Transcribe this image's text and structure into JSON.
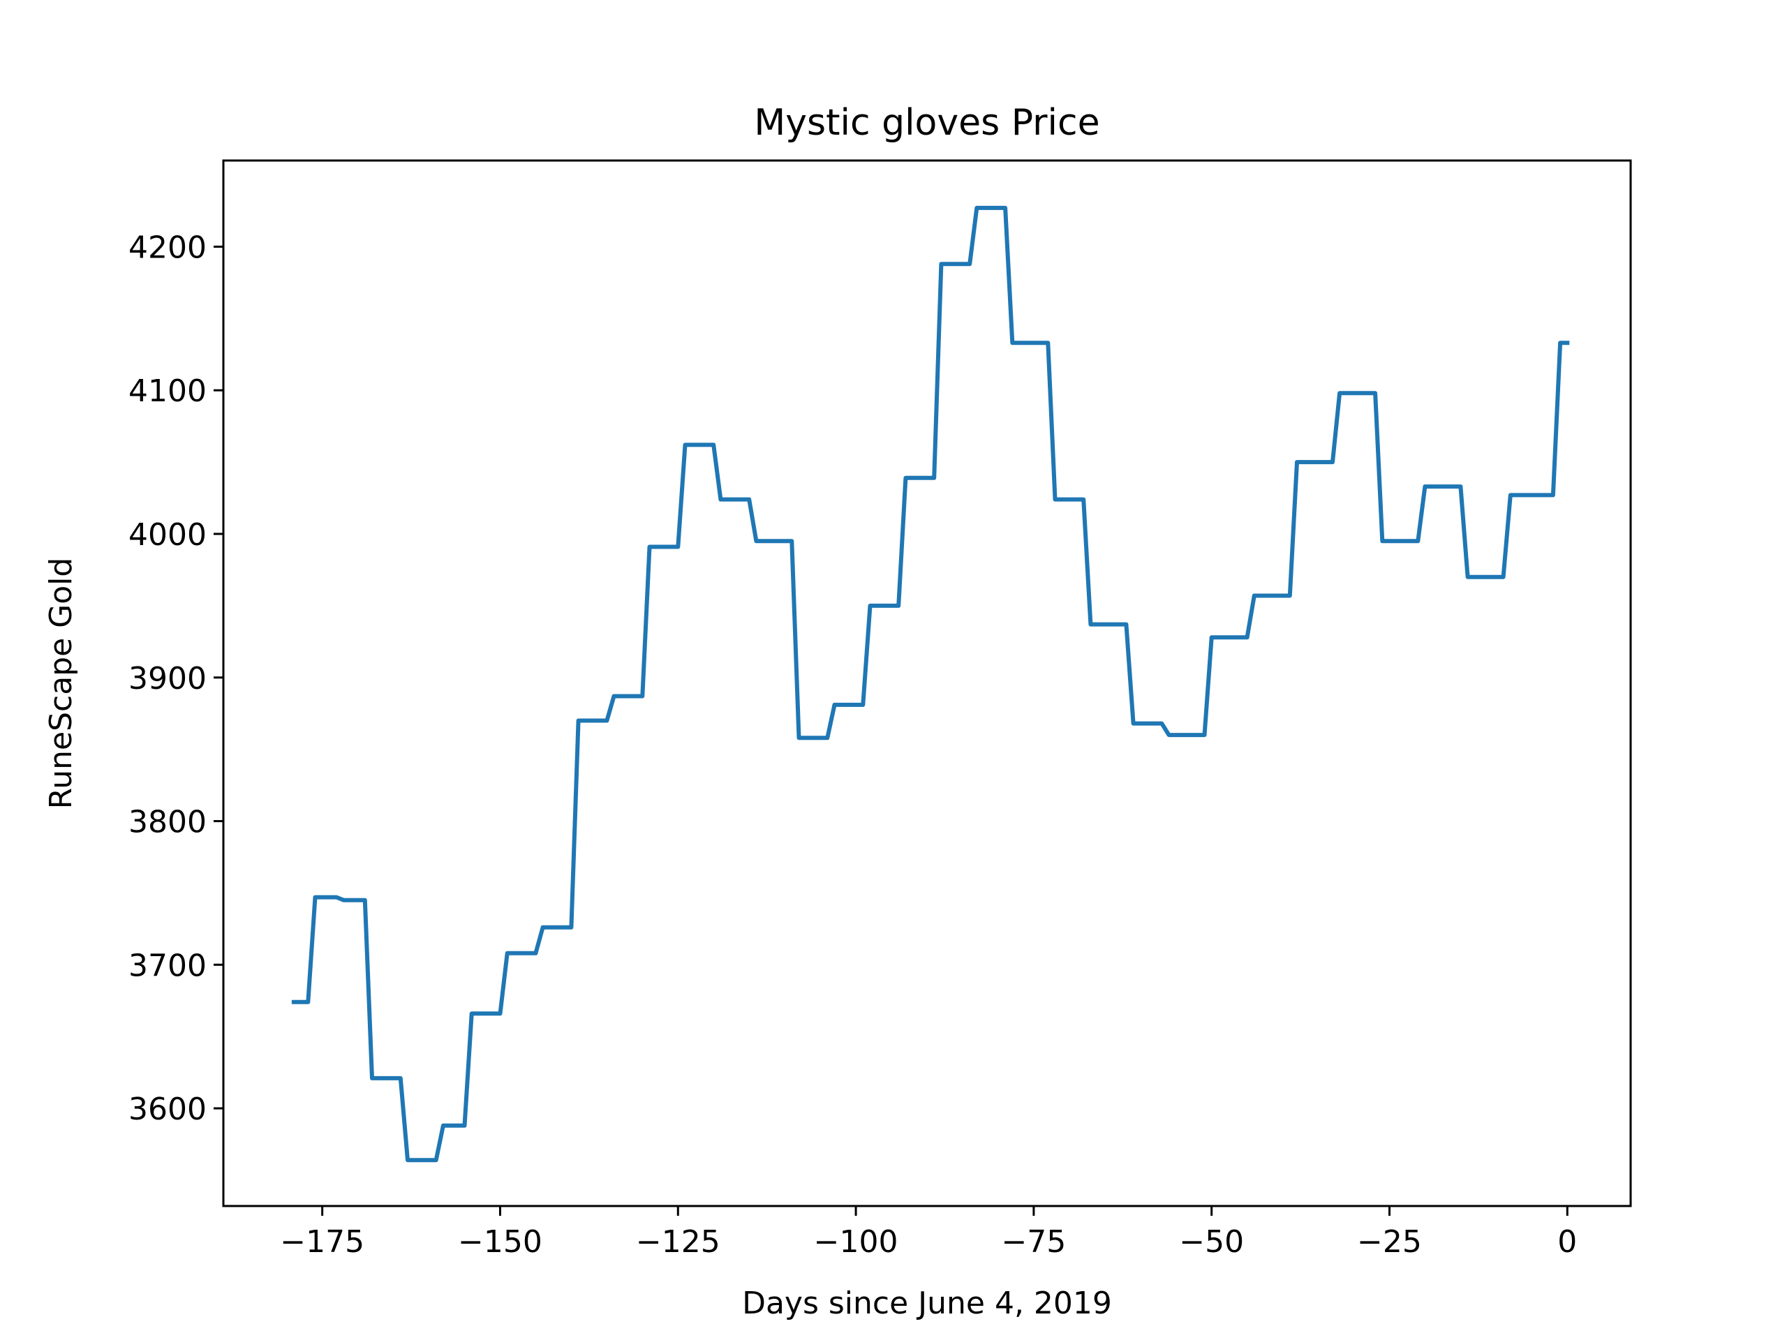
{
  "chart_data": {
    "type": "line",
    "title": "Mystic gloves Price",
    "xlabel": "Days since June 4, 2019",
    "ylabel": "RuneScape Gold",
    "xlim": [
      -188.9,
      8.9
    ],
    "ylim": [
      3532,
      4260
    ],
    "xticks": [
      -175,
      -150,
      -125,
      -100,
      -75,
      -50,
      -25,
      0
    ],
    "xtick_labels": [
      "−175",
      "−150",
      "−125",
      "−100",
      "−75",
      "−50",
      "−25",
      "0"
    ],
    "yticks": [
      3600,
      3700,
      3800,
      3900,
      4000,
      4100,
      4200
    ],
    "ytick_labels": [
      "3600",
      "3700",
      "3800",
      "3900",
      "4000",
      "4100",
      "4200"
    ],
    "grid": false,
    "line_color": "#1f77b4",
    "series": [
      {
        "x": [
          -179,
          -177,
          -176,
          -173,
          -172,
          -169,
          -168,
          -164,
          -163,
          -159,
          -158,
          -155,
          -154,
          -150,
          -149,
          -145,
          -144,
          -140,
          -139,
          -135,
          -134,
          -130,
          -129,
          -125,
          -124,
          -120,
          -119,
          -115,
          -114,
          -109,
          -108,
          -104,
          -103,
          -99,
          -98,
          -94,
          -93,
          -89,
          -88,
          -84,
          -83,
          -79,
          -78,
          -73,
          -72,
          -68,
          -67,
          -62,
          -61,
          -57,
          -56,
          -51,
          -50,
          -45,
          -44,
          -39,
          -38,
          -33,
          -32,
          -27,
          -26,
          -21,
          -20,
          -15,
          -14,
          -9,
          -8,
          -2,
          -1,
          0
        ],
        "y": [
          3674,
          3674,
          3747,
          3747,
          3745,
          3745,
          3621,
          3621,
          3564,
          3564,
          3588,
          3588,
          3666,
          3666,
          3708,
          3708,
          3726,
          3726,
          3870,
          3870,
          3887,
          3887,
          3991,
          3991,
          4062,
          4062,
          4024,
          4024,
          3995,
          3995,
          3858,
          3858,
          3881,
          3881,
          3950,
          3950,
          4039,
          4039,
          4188,
          4188,
          4227,
          4227,
          4133,
          4133,
          4024,
          4024,
          3937,
          3937,
          3868,
          3868,
          3860,
          3860,
          3928,
          3928,
          3957,
          3957,
          4050,
          4050,
          4098,
          4098,
          3995,
          3995,
          4033,
          4033,
          3970,
          3970,
          4027,
          4027,
          4133,
          4133
        ]
      }
    ]
  }
}
